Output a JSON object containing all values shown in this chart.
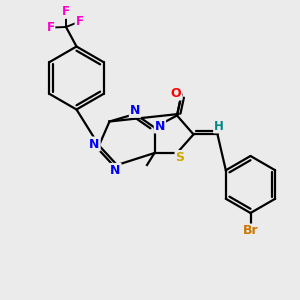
{
  "bg_color": "#ebebeb",
  "atom_colors": {
    "N": "#0000ff",
    "S": "#ccaa00",
    "O": "#ff0000",
    "F": "#ff00cc",
    "Br": "#cc7700",
    "H": "#008888",
    "C": "#000000"
  },
  "bond_color": "#000000",
  "bond_width": 1.6,
  "figsize": [
    3.0,
    3.0
  ],
  "dpi": 100
}
